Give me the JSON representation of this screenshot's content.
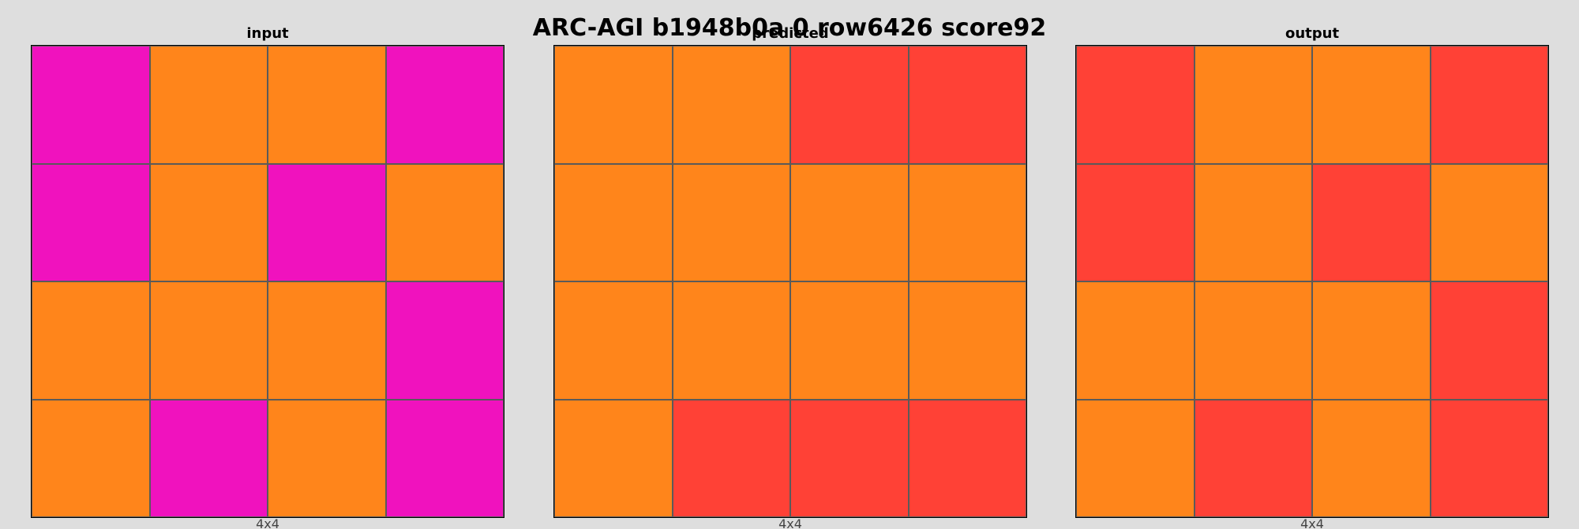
{
  "title": "ARC-AGI b1948b0a 0 row6426 score92",
  "palette": {
    "magenta": "#f012be",
    "orange": "#ff851b",
    "red": "#ff4136"
  },
  "panels": [
    {
      "label": "input",
      "dims": "4x4",
      "grid": [
        [
          "magenta",
          "orange",
          "orange",
          "magenta"
        ],
        [
          "magenta",
          "orange",
          "magenta",
          "orange"
        ],
        [
          "orange",
          "orange",
          "orange",
          "magenta"
        ],
        [
          "orange",
          "magenta",
          "orange",
          "magenta"
        ]
      ]
    },
    {
      "label": "predicted",
      "dims": "4x4",
      "grid": [
        [
          "orange",
          "orange",
          "red",
          "red"
        ],
        [
          "orange",
          "orange",
          "orange",
          "orange"
        ],
        [
          "orange",
          "orange",
          "orange",
          "orange"
        ],
        [
          "orange",
          "red",
          "red",
          "red"
        ]
      ]
    },
    {
      "label": "output",
      "dims": "4x4",
      "grid": [
        [
          "red",
          "orange",
          "orange",
          "red"
        ],
        [
          "red",
          "orange",
          "red",
          "orange"
        ],
        [
          "orange",
          "orange",
          "orange",
          "red"
        ],
        [
          "orange",
          "red",
          "orange",
          "red"
        ]
      ]
    }
  ]
}
